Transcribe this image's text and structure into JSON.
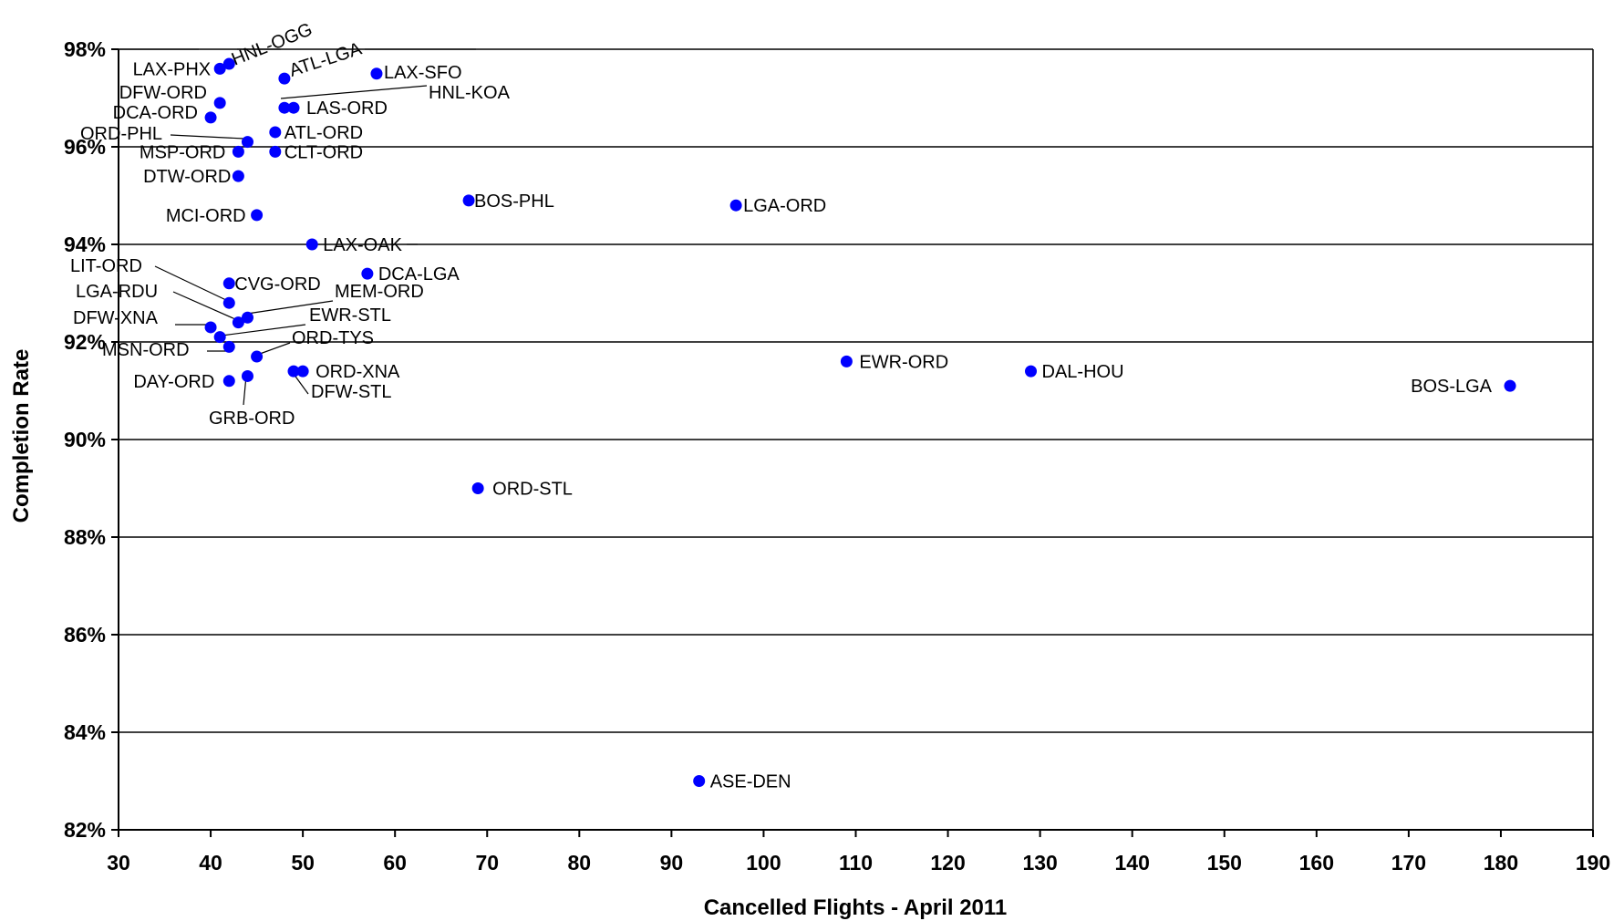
{
  "chart_data": {
    "type": "scatter",
    "title": "",
    "xlabel": "Cancelled Flights - April 2011",
    "ylabel": "Completion Rate",
    "xlim": [
      30,
      190
    ],
    "ylim": [
      82,
      98
    ],
    "x_ticks": [
      30,
      40,
      50,
      60,
      70,
      80,
      90,
      100,
      110,
      120,
      130,
      140,
      150,
      160,
      170,
      180,
      190
    ],
    "y_ticks": [
      82,
      84,
      86,
      88,
      90,
      92,
      94,
      96,
      98
    ],
    "y_tick_format": "percent",
    "grid": "horizontal",
    "legend": "none",
    "marker_color": "#0000FF",
    "points": [
      {
        "label": "LAX-PHX",
        "x": 41,
        "y": 97.6
      },
      {
        "label": "HNL-OGG",
        "x": 42,
        "y": 97.7
      },
      {
        "label": "ATL-LGA",
        "x": 48,
        "y": 97.4
      },
      {
        "label": "LAX-SFO",
        "x": 58,
        "y": 97.5
      },
      {
        "label": "HNL-KOA",
        "x": 48,
        "y": 96.8
      },
      {
        "label": "LAS-ORD",
        "x": 49,
        "y": 96.8
      },
      {
        "label": "DFW-ORD",
        "x": 41,
        "y": 96.9
      },
      {
        "label": "DCA-ORD",
        "x": 40,
        "y": 96.6
      },
      {
        "label": "ATL-ORD",
        "x": 47,
        "y": 96.3
      },
      {
        "label": "ORD-PHL",
        "x": 44,
        "y": 96.1
      },
      {
        "label": "MSP-ORD",
        "x": 43,
        "y": 95.9
      },
      {
        "label": "CLT-ORD",
        "x": 47,
        "y": 95.9
      },
      {
        "label": "DTW-ORD",
        "x": 43,
        "y": 95.4
      },
      {
        "label": "BOS-PHL",
        "x": 68,
        "y": 94.9
      },
      {
        "label": "LGA-ORD",
        "x": 97,
        "y": 94.8
      },
      {
        "label": "MCI-ORD",
        "x": 45,
        "y": 94.6
      },
      {
        "label": "LAX-OAK",
        "x": 51,
        "y": 94.0
      },
      {
        "label": "DCA-LGA",
        "x": 57,
        "y": 93.4
      },
      {
        "label": "CVG-ORD",
        "x": 42,
        "y": 93.2
      },
      {
        "label": "LIT-ORD",
        "x": 42,
        "y": 92.8
      },
      {
        "label": "MEM-ORD",
        "x": 44,
        "y": 92.5
      },
      {
        "label": "LGA-RDU",
        "x": 43,
        "y": 92.4
      },
      {
        "label": "DFW-XNA",
        "x": 40,
        "y": 92.3
      },
      {
        "label": "EWR-STL",
        "x": 41,
        "y": 92.1
      },
      {
        "label": "MSN-ORD",
        "x": 42,
        "y": 91.9
      },
      {
        "label": "ORD-TYS",
        "x": 45,
        "y": 91.7
      },
      {
        "label": "ORD-XNA",
        "x": 50,
        "y": 91.4
      },
      {
        "label": "DFW-STL",
        "x": 49,
        "y": 91.4
      },
      {
        "label": "GRB-ORD",
        "x": 44,
        "y": 91.3
      },
      {
        "label": "DAY-ORD",
        "x": 42,
        "y": 91.2
      },
      {
        "label": "EWR-ORD",
        "x": 109,
        "y": 91.6
      },
      {
        "label": "DAL-HOU",
        "x": 129,
        "y": 91.4
      },
      {
        "label": "BOS-LGA",
        "x": 181,
        "y": 91.1
      },
      {
        "label": "ORD-STL",
        "x": 69,
        "y": 89.0
      },
      {
        "label": "ASE-DEN",
        "x": 93,
        "y": 83.0
      }
    ]
  }
}
